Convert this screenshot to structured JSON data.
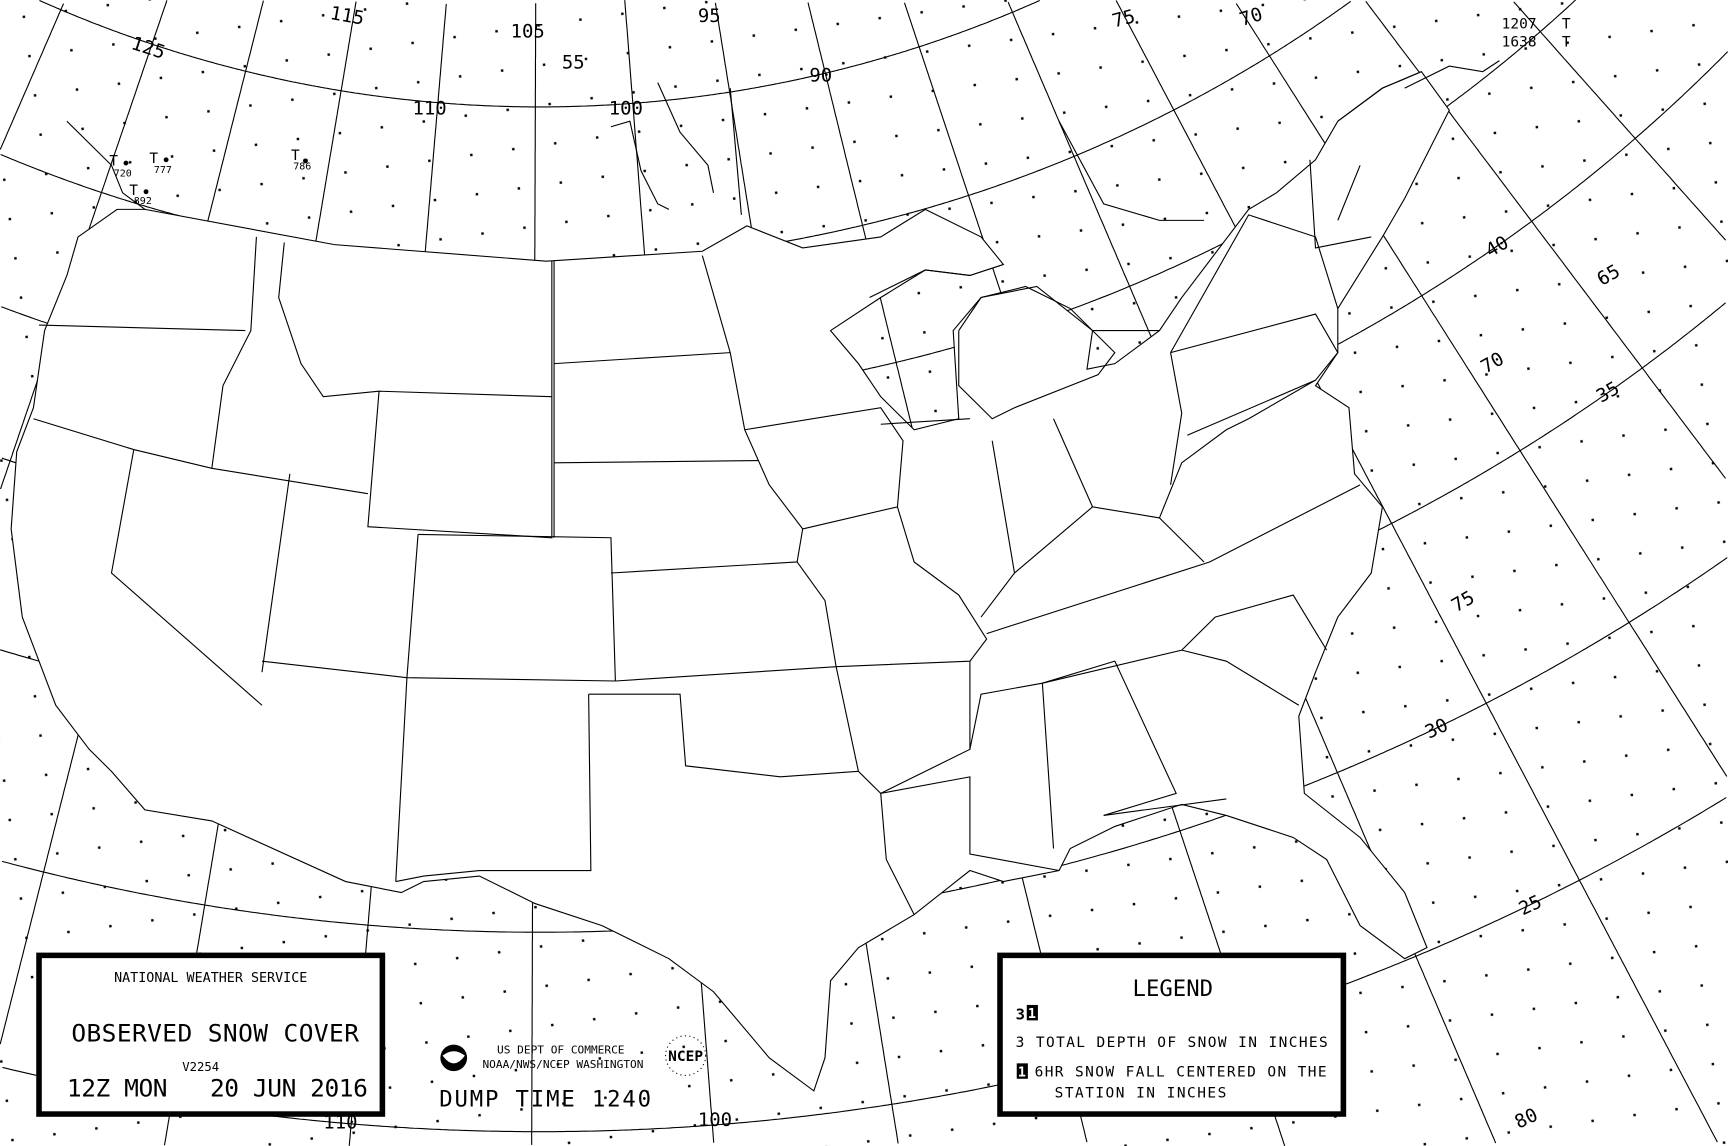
{
  "map": {
    "meridian_labels_top": [
      "125",
      "115",
      "110",
      "105",
      "100",
      "95",
      "90",
      "75",
      "70"
    ],
    "parallel_labels_top": [
      "55"
    ],
    "right_labels": [
      "40",
      "65",
      "70",
      "35",
      "75",
      "30",
      "25",
      "80"
    ],
    "bottom_labels": [
      "100",
      "110"
    ],
    "stations": [
      {
        "symbol": "T",
        "id": "720"
      },
      {
        "symbol": "T",
        "id": "777"
      },
      {
        "symbol": "T",
        "id": "892"
      },
      {
        "symbol": "T",
        "id": "786"
      }
    ],
    "corner_reports": [
      {
        "id": "1207",
        "symbol": "T"
      },
      {
        "id": "1638",
        "symbol": "T"
      }
    ]
  },
  "title_box": {
    "agency": "NATIONAL WEATHER SERVICE",
    "title": "OBSERVED SNOW COVER",
    "version": "V2254",
    "valid_time": "12Z MON   20 JUN 2016"
  },
  "credits": {
    "line1": "US DEPT OF COMMERCE",
    "line2": "NOAA/NWS/NCEP WASHINGTON",
    "ncep_logo": "NCEP",
    "dump_time": "DUMP TIME 1240"
  },
  "legend": {
    "title": "LEGEND",
    "sample_depth": "3",
    "sample_fall": "1",
    "depth_desc": "3 TOTAL DEPTH OF SNOW IN INCHES",
    "fall_icon": "1",
    "fall_desc_1": "6HR SNOW FALL CENTERED ON THE",
    "fall_desc_2": "STATION IN INCHES"
  }
}
